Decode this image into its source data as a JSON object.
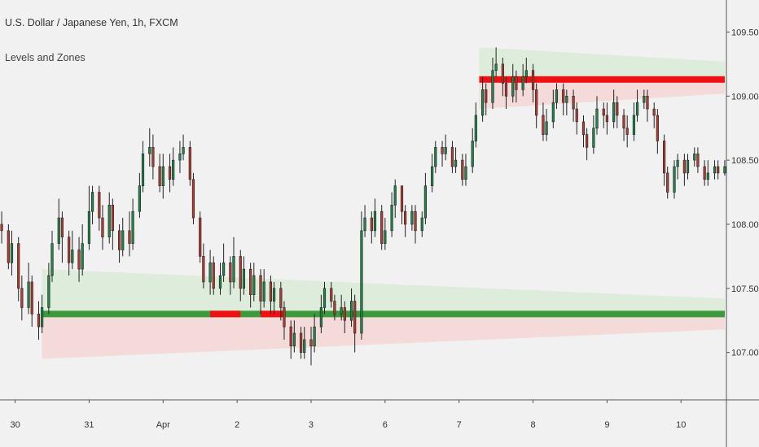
{
  "header": {
    "title": "U.S. Dollar / Japanese Yen, 1h, FXCM",
    "indicator": "Levels and Zones"
  },
  "colors": {
    "background": "#f1f1f1",
    "up_candle": "#1e8449",
    "down_candle": "#b03a2e",
    "candle_border": "#222222",
    "support_line": "#3c9a3c",
    "resistance_line": "#ee1111",
    "zone_green": "#dcebd9",
    "zone_red": "#f5d7d7",
    "axis": "#555555"
  },
  "chart_data": {
    "type": "candlestick",
    "symbol": "USDJPY",
    "timeframe": "1h",
    "y_axis": {
      "ticks": [
        "109.500",
        "109.000",
        "108.500",
        "108.000",
        "107.500",
        "107.000"
      ],
      "tick_values": [
        109.5,
        109.0,
        108.5,
        108.0,
        107.5,
        107.0
      ],
      "ylim": [
        106.63,
        109.75
      ],
      "position": "right"
    },
    "x_axis": {
      "tick_labels": [
        "30",
        "31",
        "Apr",
        "2",
        "3",
        "6",
        "7",
        "8",
        "9",
        "10"
      ],
      "tick_index": [
        4,
        26,
        48,
        70,
        92,
        114,
        136,
        158,
        180,
        202
      ]
    },
    "x_range": [
      -0.5,
      215.5
    ],
    "candles": [
      [
        108.0,
        107.95,
        108.1,
        107.85
      ],
      [
        107.95,
        107.7,
        108.0,
        107.65
      ],
      [
        107.7,
        107.85,
        107.95,
        107.6
      ],
      [
        107.85,
        107.5,
        107.9,
        107.4
      ],
      [
        107.5,
        107.35,
        107.6,
        107.25
      ],
      [
        107.35,
        107.55,
        107.7,
        107.3
      ],
      [
        107.55,
        107.3,
        107.6,
        107.2
      ],
      [
        107.3,
        107.2,
        107.4,
        107.1
      ],
      [
        107.2,
        107.35,
        107.45,
        107.15
      ],
      [
        107.35,
        107.6,
        107.7,
        107.3
      ],
      [
        107.6,
        107.85,
        107.95,
        107.55
      ],
      [
        107.85,
        108.05,
        108.2,
        107.8
      ],
      [
        108.05,
        107.9,
        108.1,
        107.7
      ],
      [
        107.9,
        107.7,
        107.95,
        107.6
      ],
      [
        107.7,
        107.8,
        107.95,
        107.65
      ],
      [
        107.8,
        107.65,
        107.9,
        107.55
      ],
      [
        107.65,
        107.85,
        108.0,
        107.6
      ],
      [
        107.85,
        108.1,
        108.3,
        107.8
      ],
      [
        108.1,
        108.25,
        108.3,
        108.0
      ],
      [
        108.25,
        108.05,
        108.3,
        107.95
      ],
      [
        108.05,
        107.9,
        108.15,
        107.8
      ],
      [
        107.9,
        108.15,
        108.25,
        107.85
      ],
      [
        108.15,
        107.95,
        108.2,
        107.8
      ],
      [
        107.95,
        107.8,
        108.0,
        107.7
      ],
      [
        107.8,
        107.95,
        108.05,
        107.75
      ],
      [
        107.95,
        107.85,
        108.1,
        107.75
      ],
      [
        107.85,
        108.1,
        108.2,
        107.8
      ],
      [
        108.1,
        108.3,
        108.4,
        108.05
      ],
      [
        108.3,
        108.55,
        108.65,
        108.25
      ],
      [
        108.55,
        108.6,
        108.75,
        108.45
      ],
      [
        108.6,
        108.45,
        108.7,
        108.35
      ],
      [
        108.45,
        108.3,
        108.55,
        108.25
      ],
      [
        108.3,
        108.45,
        108.55,
        108.2
      ],
      [
        108.45,
        108.35,
        108.55,
        108.25
      ],
      [
        108.35,
        108.5,
        108.6,
        108.3
      ],
      [
        108.5,
        108.55,
        108.65,
        108.4
      ],
      [
        108.55,
        108.6,
        108.7,
        108.5
      ],
      [
        108.6,
        108.35,
        108.65,
        108.3
      ],
      [
        108.35,
        108.05,
        108.4,
        108.0
      ],
      [
        108.05,
        107.75,
        108.1,
        107.7
      ],
      [
        107.75,
        107.55,
        107.85,
        107.5
      ],
      [
        107.55,
        107.7,
        107.8,
        107.45
      ],
      [
        107.7,
        107.5,
        107.75,
        107.45
      ],
      [
        107.5,
        107.6,
        107.7,
        107.45
      ],
      [
        107.6,
        107.7,
        107.85,
        107.55
      ],
      [
        107.7,
        107.55,
        107.75,
        107.45
      ],
      [
        107.55,
        107.75,
        107.9,
        107.5
      ],
      [
        107.75,
        107.5,
        107.8,
        107.4
      ],
      [
        107.5,
        107.65,
        107.75,
        107.45
      ],
      [
        107.65,
        107.45,
        107.7,
        107.35
      ],
      [
        107.45,
        107.6,
        107.7,
        107.4
      ],
      [
        107.6,
        107.4,
        107.65,
        107.3
      ],
      [
        107.4,
        107.55,
        107.65,
        107.35
      ],
      [
        107.55,
        107.4,
        107.6,
        107.3
      ],
      [
        107.4,
        107.5,
        107.55,
        107.3
      ],
      [
        107.5,
        107.35,
        107.55,
        107.25
      ],
      [
        107.35,
        107.2,
        107.4,
        107.1
      ],
      [
        107.2,
        107.05,
        107.25,
        106.95
      ],
      [
        107.05,
        107.15,
        107.25,
        107.0
      ],
      [
        107.15,
        107.0,
        107.2,
        106.95
      ],
      [
        107.0,
        107.1,
        107.2,
        106.95
      ],
      [
        107.1,
        107.05,
        107.2,
        106.9
      ],
      [
        107.05,
        107.2,
        107.3,
        107.0
      ],
      [
        107.2,
        107.35,
        107.45,
        107.15
      ],
      [
        107.35,
        107.5,
        107.55,
        107.3
      ],
      [
        107.5,
        107.4,
        107.55,
        107.35
      ],
      [
        107.4,
        107.3,
        107.45,
        107.25
      ],
      [
        107.3,
        107.35,
        107.45,
        107.25
      ],
      [
        107.35,
        107.25,
        107.4,
        107.15
      ],
      [
        107.25,
        107.4,
        107.5,
        107.2
      ],
      [
        107.4,
        107.15,
        107.45,
        107.0
      ],
      [
        107.15,
        107.95,
        108.1,
        107.1
      ],
      [
        107.95,
        108.05,
        108.15,
        107.9
      ],
      [
        108.05,
        107.95,
        108.1,
        107.85
      ],
      [
        107.95,
        108.1,
        108.2,
        107.9
      ],
      [
        108.1,
        107.85,
        108.15,
        107.8
      ],
      [
        107.85,
        107.95,
        108.05,
        107.8
      ],
      [
        107.95,
        108.15,
        108.25,
        107.9
      ],
      [
        108.15,
        108.3,
        108.35,
        108.05
      ],
      [
        108.3,
        108.1,
        108.3,
        108.0
      ],
      [
        108.1,
        108.0,
        108.15,
        107.9
      ],
      [
        108.0,
        108.1,
        108.15,
        107.95
      ],
      [
        108.1,
        107.95,
        108.15,
        107.85
      ],
      [
        107.95,
        108.05,
        108.1,
        107.9
      ],
      [
        108.05,
        108.3,
        108.4,
        108.0
      ],
      [
        108.3,
        108.45,
        108.55,
        108.25
      ],
      [
        108.45,
        108.6,
        108.65,
        108.4
      ],
      [
        108.6,
        108.55,
        108.65,
        108.45
      ],
      [
        108.55,
        108.6,
        108.7,
        108.5
      ],
      [
        108.6,
        108.45,
        108.65,
        108.4
      ],
      [
        108.45,
        108.5,
        108.6,
        108.4
      ],
      [
        108.5,
        108.35,
        108.55,
        108.3
      ],
      [
        108.35,
        108.45,
        108.55,
        108.3
      ],
      [
        108.45,
        108.65,
        108.75,
        108.4
      ],
      [
        108.65,
        108.85,
        108.95,
        108.6
      ],
      [
        108.85,
        109.05,
        109.15,
        108.8
      ],
      [
        109.05,
        108.95,
        109.1,
        108.85
      ],
      [
        108.95,
        109.2,
        109.3,
        108.9
      ],
      [
        109.2,
        109.25,
        109.38,
        109.15
      ],
      [
        109.25,
        109.1,
        109.3,
        109.0
      ],
      [
        109.1,
        109.0,
        109.15,
        108.9
      ],
      [
        109.0,
        109.15,
        109.25,
        108.95
      ],
      [
        109.15,
        109.05,
        109.2,
        108.95
      ],
      [
        109.05,
        109.15,
        109.25,
        109.0
      ],
      [
        109.15,
        109.2,
        109.3,
        109.1
      ],
      [
        109.2,
        109.05,
        109.25,
        108.95
      ],
      [
        109.05,
        108.85,
        109.1,
        108.75
      ],
      [
        108.85,
        108.7,
        108.95,
        108.65
      ],
      [
        108.7,
        108.8,
        108.9,
        108.65
      ],
      [
        108.8,
        108.95,
        109.05,
        108.75
      ],
      [
        108.95,
        109.05,
        109.1,
        108.9
      ],
      [
        109.05,
        108.95,
        109.1,
        108.85
      ],
      [
        108.95,
        109.0,
        109.05,
        108.85
      ],
      [
        109.0,
        108.9,
        109.05,
        108.8
      ],
      [
        108.9,
        108.8,
        108.95,
        108.7
      ],
      [
        108.8,
        108.7,
        108.85,
        108.6
      ],
      [
        108.7,
        108.6,
        108.75,
        108.5
      ],
      [
        108.6,
        108.75,
        108.85,
        108.55
      ],
      [
        108.75,
        108.9,
        109.0,
        108.7
      ],
      [
        108.9,
        108.85,
        108.95,
        108.75
      ],
      [
        108.85,
        108.8,
        108.95,
        108.7
      ],
      [
        108.8,
        108.95,
        109.05,
        108.75
      ],
      [
        108.95,
        108.85,
        109.0,
        108.75
      ],
      [
        108.85,
        108.75,
        108.9,
        108.65
      ],
      [
        108.75,
        108.7,
        108.85,
        108.6
      ],
      [
        108.7,
        108.85,
        108.95,
        108.65
      ],
      [
        108.85,
        108.95,
        109.05,
        108.8
      ],
      [
        108.95,
        109.0,
        109.05,
        108.9
      ],
      [
        109.0,
        108.9,
        109.05,
        108.8
      ],
      [
        108.9,
        108.85,
        108.95,
        108.75
      ],
      [
        108.85,
        108.65,
        108.9,
        108.55
      ],
      [
        108.65,
        108.4,
        108.7,
        108.3
      ],
      [
        108.4,
        108.25,
        108.45,
        108.2
      ],
      [
        108.25,
        108.45,
        108.5,
        108.2
      ],
      [
        108.45,
        108.5,
        108.55,
        108.35
      ],
      [
        108.5,
        108.4,
        108.55,
        108.3
      ],
      [
        108.4,
        108.5,
        108.55,
        108.35
      ],
      [
        108.5,
        108.55,
        108.6,
        108.45
      ],
      [
        108.55,
        108.45,
        108.6,
        108.4
      ],
      [
        108.45,
        108.35,
        108.5,
        108.3
      ],
      [
        108.35,
        108.4,
        108.5,
        108.3
      ],
      [
        108.4,
        108.45,
        108.5,
        108.35
      ],
      [
        108.45,
        108.4,
        108.5,
        108.35
      ],
      [
        108.4,
        108.45,
        108.5,
        108.38
      ]
    ],
    "candle_x_index": [
      0,
      2,
      3,
      5,
      6,
      8,
      9,
      11,
      12,
      14,
      15,
      17,
      18,
      20,
      21,
      23,
      24,
      26,
      27,
      29,
      30,
      32,
      33,
      35,
      36,
      38,
      39,
      41,
      42,
      44,
      45,
      47,
      48,
      50,
      51,
      53,
      54,
      56,
      57,
      59,
      60,
      62,
      63,
      65,
      66,
      68,
      69,
      71,
      72,
      74,
      75,
      77,
      78,
      80,
      81,
      83,
      84,
      86,
      87,
      89,
      90,
      92,
      93,
      95,
      96,
      98,
      99,
      101,
      102,
      104,
      105,
      107,
      108,
      110,
      111,
      113,
      114,
      116,
      117,
      119,
      120,
      122,
      123,
      125,
      126,
      128,
      129,
      131,
      132,
      134,
      135,
      137,
      138,
      140,
      141,
      143,
      144,
      146,
      147,
      149,
      150,
      152,
      153,
      155,
      156,
      158,
      159,
      161,
      162,
      164,
      165,
      167,
      168,
      170,
      171,
      173,
      174,
      176,
      177,
      179,
      180,
      182,
      183,
      185,
      186,
      188,
      189,
      191,
      192,
      194,
      195,
      197,
      198,
      200,
      201,
      203,
      204,
      206,
      207,
      209,
      210,
      212,
      213,
      215
    ],
    "levels": [
      {
        "type": "support",
        "price": 107.3,
        "x_start": 12,
        "x_end": 215
      },
      {
        "type": "support_broken",
        "price": 107.3,
        "x_start": 62,
        "x_end": 71
      },
      {
        "type": "support_broken",
        "price": 107.3,
        "x_start": 77,
        "x_end": 84
      },
      {
        "type": "resistance",
        "price": 109.13,
        "x_start": 142,
        "x_end": 215
      }
    ],
    "zones": [
      {
        "color": "green",
        "x_start": 12,
        "x_end": 215,
        "top_start": 107.65,
        "top_end": 107.42,
        "bottom_start": 107.3,
        "bottom_end": 107.3
      },
      {
        "color": "red",
        "x_start": 12,
        "x_end": 215,
        "top_start": 107.3,
        "top_end": 107.3,
        "bottom_start": 106.95,
        "bottom_end": 107.18
      },
      {
        "color": "green",
        "x_start": 142,
        "x_end": 215,
        "top_start": 109.38,
        "top_end": 109.27,
        "bottom_start": 109.13,
        "bottom_end": 109.13
      },
      {
        "color": "red",
        "x_start": 142,
        "x_end": 215,
        "top_start": 109.13,
        "top_end": 109.13,
        "bottom_start": 108.9,
        "bottom_end": 109.02
      }
    ],
    "grid": false,
    "legend": "none"
  }
}
